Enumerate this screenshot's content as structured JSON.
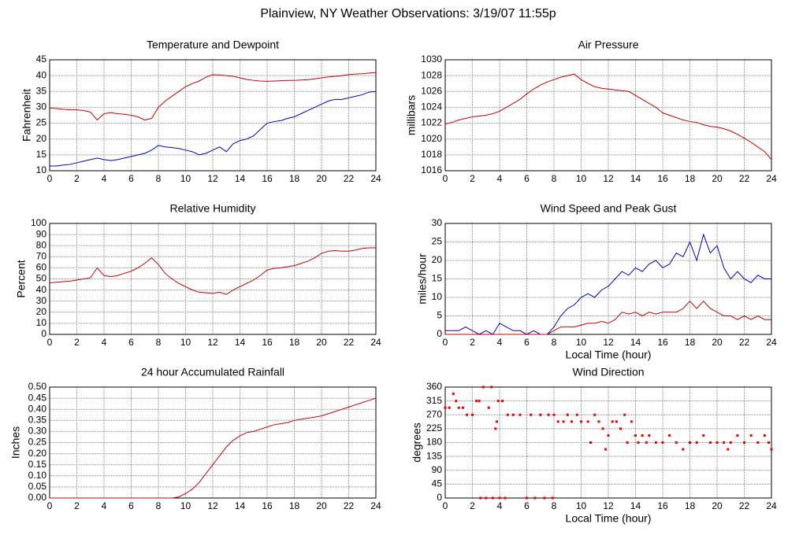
{
  "title": "Plainview, NY Weather Observations: 3/19/07 11:55p",
  "chart_data": [
    {
      "type": "line",
      "title": "Temperature and Dewpoint",
      "ylabel": "Fahrenheit",
      "grid": true,
      "xlim": [
        0,
        24
      ],
      "xticks": [
        0,
        2,
        4,
        6,
        8,
        10,
        12,
        14,
        16,
        18,
        20,
        22,
        24
      ],
      "ylim": [
        10,
        45
      ],
      "yticks": [
        10,
        15,
        20,
        25,
        30,
        35,
        40,
        45
      ],
      "x": [
        0,
        0.5,
        1,
        1.5,
        2,
        2.5,
        3,
        3.5,
        4,
        4.5,
        5,
        5.5,
        6,
        6.5,
        7,
        7.5,
        8,
        8.5,
        9,
        9.5,
        10,
        10.5,
        11,
        11.5,
        12,
        12.5,
        13,
        13.5,
        14,
        14.5,
        15,
        15.5,
        16,
        16.5,
        17,
        17.5,
        18,
        18.5,
        19,
        19.5,
        20,
        20.5,
        21,
        21.5,
        22,
        22.5,
        23,
        23.5,
        24
      ],
      "series": [
        {
          "color": "#cc0000",
          "values": [
            29.8,
            29.6,
            29.4,
            29.2,
            29.2,
            29,
            28.5,
            26,
            28,
            28.3,
            28,
            27.8,
            27.5,
            27,
            26,
            26.5,
            30,
            32,
            33.5,
            35,
            36.5,
            37.5,
            38.3,
            39.5,
            40.3,
            40.2,
            40,
            39.8,
            39.3,
            38.8,
            38.5,
            38.3,
            38.2,
            38.3,
            38.4,
            38.5,
            38.5,
            38.6,
            38.7,
            39,
            39.3,
            39.6,
            39.8,
            40,
            40.3,
            40.5,
            40.6,
            40.8,
            41
          ]
        },
        {
          "color": "#0000cc",
          "values": [
            11.5,
            11.5,
            11.8,
            12,
            12.5,
            13,
            13.5,
            14,
            13.5,
            13.2,
            13.5,
            14,
            14.5,
            15,
            15.5,
            16.5,
            18,
            17.5,
            17.3,
            17,
            16.5,
            16,
            15,
            15.5,
            16.5,
            17.5,
            16,
            18.5,
            19.5,
            20,
            21,
            23,
            25,
            25.5,
            25.8,
            26.5,
            27,
            28,
            29,
            30,
            31,
            32,
            32.5,
            32.5,
            33,
            33.5,
            34,
            34.8,
            35
          ]
        }
      ]
    },
    {
      "type": "line",
      "title": "Air Pressure",
      "ylabel": "millibars",
      "grid": true,
      "xlim": [
        0,
        24
      ],
      "xticks": [
        0,
        2,
        4,
        6,
        8,
        10,
        12,
        14,
        16,
        18,
        20,
        22,
        24
      ],
      "ylim": [
        1016,
        1030
      ],
      "yticks": [
        1016,
        1018,
        1020,
        1022,
        1024,
        1026,
        1028,
        1030
      ],
      "x": [
        0,
        0.5,
        1,
        1.5,
        2,
        2.5,
        3,
        3.5,
        4,
        4.5,
        5,
        5.5,
        6,
        6.5,
        7,
        7.5,
        8,
        8.5,
        9,
        9.5,
        10,
        10.5,
        11,
        11.5,
        12,
        12.5,
        13,
        13.5,
        14,
        14.5,
        15,
        15.5,
        16,
        16.5,
        17,
        17.5,
        18,
        18.5,
        19,
        19.5,
        20,
        20.5,
        21,
        21.5,
        22,
        22.5,
        23,
        23.5,
        24
      ],
      "series": [
        {
          "color": "#cc0000",
          "values": [
            1021.9,
            1022.1,
            1022.4,
            1022.6,
            1022.8,
            1022.9,
            1023,
            1023.2,
            1023.5,
            1024,
            1024.5,
            1025,
            1025.7,
            1026.3,
            1026.8,
            1027.2,
            1027.5,
            1027.8,
            1028,
            1028.2,
            1027.5,
            1027,
            1026.6,
            1026.4,
            1026.3,
            1026.2,
            1026.1,
            1026,
            1025.5,
            1025,
            1024.5,
            1024,
            1023.3,
            1023,
            1022.7,
            1022.4,
            1022.2,
            1022.1,
            1021.8,
            1021.6,
            1021.5,
            1021.3,
            1021,
            1020.6,
            1020.1,
            1019.6,
            1019,
            1018.4,
            1017.4
          ]
        }
      ]
    },
    {
      "type": "line",
      "title": "Relative Humidity",
      "ylabel": "Percent",
      "grid": true,
      "xlim": [
        0,
        24
      ],
      "xticks": [
        0,
        2,
        4,
        6,
        8,
        10,
        12,
        14,
        16,
        18,
        20,
        22,
        24
      ],
      "ylim": [
        0,
        100
      ],
      "yticks": [
        0,
        10,
        20,
        30,
        40,
        50,
        60,
        70,
        80,
        90,
        100
      ],
      "x": [
        0,
        0.5,
        1,
        1.5,
        2,
        2.5,
        3,
        3.5,
        4,
        4.5,
        5,
        5.5,
        6,
        6.5,
        7,
        7.5,
        8,
        8.5,
        9,
        9.5,
        10,
        10.5,
        11,
        11.5,
        12,
        12.5,
        13,
        13.5,
        14,
        14.5,
        15,
        15.5,
        16,
        16.5,
        17,
        17.5,
        18,
        18.5,
        19,
        19.5,
        20,
        20.5,
        21,
        21.5,
        22,
        22.5,
        23,
        23.5,
        24
      ],
      "series": [
        {
          "color": "#cc0000",
          "values": [
            46.5,
            47,
            47.5,
            48,
            49,
            50,
            51,
            60,
            53,
            52,
            53,
            55,
            57,
            60,
            64,
            69,
            63,
            55,
            50,
            46,
            43,
            40,
            38,
            37.5,
            37,
            38,
            36,
            40,
            43,
            46,
            49,
            53,
            58,
            59.5,
            60,
            61,
            62,
            64,
            66,
            69,
            73,
            75,
            75.5,
            75,
            75,
            76,
            77.5,
            78,
            78
          ]
        }
      ]
    },
    {
      "type": "line",
      "title": "Wind Speed and Peak Gust",
      "ylabel": "miles/hour",
      "xlabel": "Local Time (hour)",
      "grid": true,
      "xlim": [
        0,
        24
      ],
      "xticks": [
        0,
        2,
        4,
        6,
        8,
        10,
        12,
        14,
        16,
        18,
        20,
        22,
        24
      ],
      "ylim": [
        0,
        30
      ],
      "yticks": [
        0,
        5,
        10,
        15,
        20,
        25,
        30
      ],
      "x": [
        0,
        0.5,
        1,
        1.5,
        2,
        2.5,
        3,
        3.5,
        4,
        4.5,
        5,
        5.5,
        6,
        6.5,
        7,
        7.5,
        8,
        8.5,
        9,
        9.5,
        10,
        10.5,
        11,
        11.5,
        12,
        12.5,
        13,
        13.5,
        14,
        14.5,
        15,
        15.5,
        16,
        16.5,
        17,
        17.5,
        18,
        18.5,
        19,
        19.5,
        20,
        20.5,
        21,
        21.5,
        22,
        22.5,
        23,
        23.5,
        24
      ],
      "series": [
        {
          "color": "#0000cc",
          "values": [
            1,
            1,
            1,
            2,
            1,
            0,
            1,
            0,
            3,
            2,
            1,
            1,
            0,
            1,
            0,
            0,
            2,
            5,
            7,
            8,
            10,
            11,
            10,
            12,
            13,
            15,
            17,
            16,
            18,
            17,
            19,
            20,
            18,
            19,
            22,
            21,
            25,
            20,
            27,
            22,
            24,
            18,
            15,
            17,
            15,
            14,
            16,
            15,
            15
          ]
        },
        {
          "color": "#cc0000",
          "values": [
            0,
            0,
            0,
            0,
            0,
            0,
            0,
            0,
            0,
            0,
            0,
            0,
            0,
            0,
            0,
            0,
            1,
            2,
            2,
            2,
            2.5,
            3,
            3,
            3.5,
            3,
            4,
            6,
            5.5,
            6,
            5,
            6,
            5.5,
            6,
            6,
            6,
            7,
            9,
            7,
            9,
            7,
            6,
            5,
            5,
            4,
            5,
            4,
            5,
            4,
            4
          ]
        }
      ]
    },
    {
      "type": "line",
      "title": "24 hour Accumulated Rainfall",
      "ylabel": "Inches",
      "grid": true,
      "xlim": [
        0,
        24
      ],
      "xticks": [
        0,
        2,
        4,
        6,
        8,
        10,
        12,
        14,
        16,
        18,
        20,
        22,
        24
      ],
      "ylim": [
        0,
        0.5
      ],
      "yticks": [
        {
          "value": 0,
          "label": "0.00"
        },
        0.05,
        {
          "value": 0.1,
          "label": "0.10"
        },
        0.15,
        {
          "value": 0.2,
          "label": "0.20"
        },
        0.25,
        {
          "value": 0.3,
          "label": "0.30"
        },
        0.35,
        {
          "value": 0.4,
          "label": "0.40"
        },
        0.45,
        {
          "value": 0.5,
          "label": "0.50"
        }
      ],
      "x": [
        0,
        0.5,
        1,
        1.5,
        2,
        2.5,
        3,
        3.5,
        4,
        4.5,
        5,
        5.5,
        6,
        6.5,
        7,
        7.5,
        8,
        8.5,
        9,
        9.5,
        10,
        10.5,
        11,
        11.5,
        12,
        12.5,
        13,
        13.5,
        14,
        14.5,
        15,
        15.5,
        16,
        16.5,
        17,
        17.5,
        18,
        18.5,
        19,
        19.5,
        20,
        20.5,
        21,
        21.5,
        22,
        22.5,
        23,
        23.5,
        24
      ],
      "series": [
        {
          "color": "#cc0000",
          "values": [
            0,
            0,
            0,
            0,
            0,
            0,
            0,
            0,
            0,
            0,
            0,
            0,
            0,
            0,
            0,
            0,
            0,
            0,
            0,
            0.005,
            0.02,
            0.04,
            0.07,
            0.11,
            0.15,
            0.19,
            0.23,
            0.26,
            0.28,
            0.295,
            0.3,
            0.31,
            0.32,
            0.33,
            0.335,
            0.34,
            0.35,
            0.355,
            0.36,
            0.365,
            0.37,
            0.38,
            0.39,
            0.4,
            0.41,
            0.42,
            0.43,
            0.44,
            0.45
          ]
        }
      ]
    },
    {
      "type": "scatter",
      "title": "Wind Direction",
      "ylabel": "degrees",
      "xlabel": "Local Time (hour)",
      "grid": true,
      "color": "#ee0000",
      "xlim": [
        0,
        24
      ],
      "xticks": [
        0,
        2,
        4,
        6,
        8,
        10,
        12,
        14,
        16,
        18,
        20,
        22,
        24
      ],
      "ylim": [
        0,
        360
      ],
      "yticks": [
        0,
        45,
        90,
        135,
        180,
        225,
        270,
        315,
        360
      ],
      "x": [
        0,
        0.3,
        0.6,
        0.8,
        1,
        1.3,
        1.6,
        2,
        2.3,
        2.5,
        2.6,
        2.8,
        3,
        3.2,
        3.4,
        3.5,
        3.7,
        3.8,
        3.9,
        4,
        4.2,
        4.4,
        4.6,
        5,
        5.5,
        6,
        6.3,
        6.6,
        7,
        7.3,
        7.6,
        7.9,
        8,
        8.3,
        8.7,
        9,
        9.3,
        9.7,
        10,
        10.5,
        10.7,
        11,
        11.3,
        11.6,
        11.8,
        12,
        12.3,
        12.6,
        12.9,
        13.2,
        13.4,
        13.7,
        14,
        14.2,
        14.5,
        14.8,
        15,
        15.5,
        16,
        16.5,
        17,
        17.5,
        18,
        18.5,
        19,
        19.5,
        20,
        20.5,
        20.8,
        21,
        21.5,
        22,
        22.5,
        23,
        23.5,
        23.8,
        24
      ],
      "y": [
        293,
        293,
        338,
        315,
        293,
        293,
        270,
        270,
        315,
        315,
        0,
        360,
        0,
        293,
        360,
        0,
        225,
        248,
        315,
        0,
        315,
        0,
        270,
        270,
        270,
        0,
        270,
        0,
        270,
        0,
        270,
        0,
        270,
        248,
        248,
        270,
        248,
        270,
        248,
        248,
        180,
        270,
        248,
        225,
        158,
        203,
        248,
        248,
        225,
        270,
        180,
        248,
        203,
        180,
        203,
        180,
        203,
        180,
        180,
        203,
        180,
        158,
        180,
        180,
        203,
        180,
        180,
        180,
        158,
        180,
        203,
        180,
        203,
        180,
        203,
        180,
        158
      ]
    }
  ]
}
